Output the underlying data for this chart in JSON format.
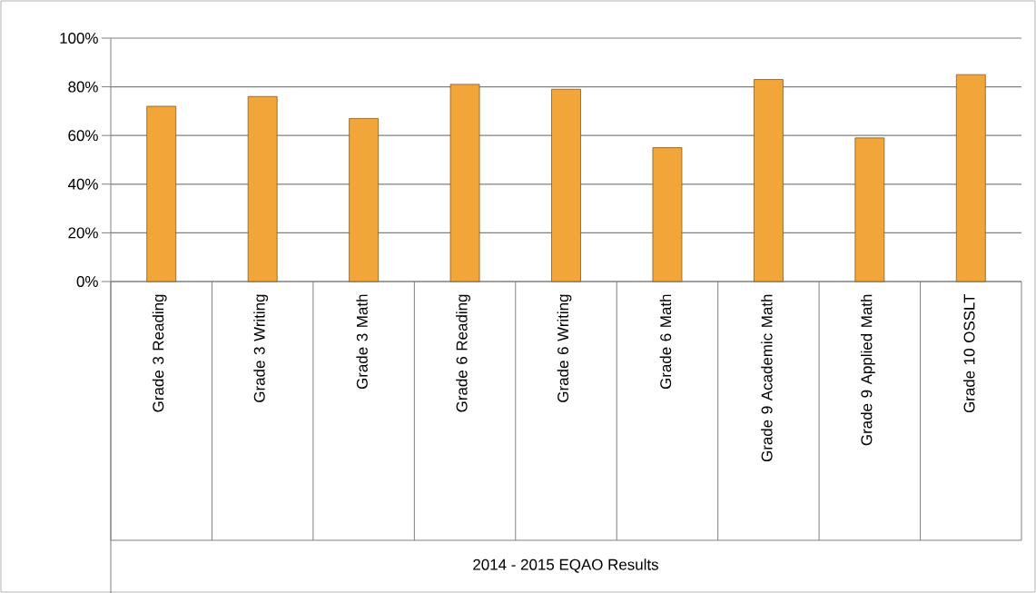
{
  "chart_data": {
    "type": "bar",
    "annotations": [
      "2014 - 2015 EQAO Results"
    ],
    "categories": [
      "Grade 3 Reading",
      "Grade 3 Writing",
      "Grade 3 Math",
      "Grade 6 Reading",
      "Grade 6 Writing",
      "Grade 6 Math",
      "Grade 9 Academic Math",
      "Grade 9 Applied Math",
      "Grade 10 OSSLT"
    ],
    "values": [
      72,
      76,
      67,
      81,
      79,
      55,
      83,
      59,
      85
    ],
    "color": "#f2a63a",
    "ylim": [
      0,
      100
    ],
    "yticks": [
      {
        "value": 0,
        "label": "0%"
      },
      {
        "value": 20,
        "label": "20%"
      },
      {
        "value": 40,
        "label": "40%"
      },
      {
        "value": 60,
        "label": "60%"
      },
      {
        "value": 80,
        "label": "80%"
      },
      {
        "value": 100,
        "label": "100%"
      }
    ],
    "grid": "y"
  }
}
